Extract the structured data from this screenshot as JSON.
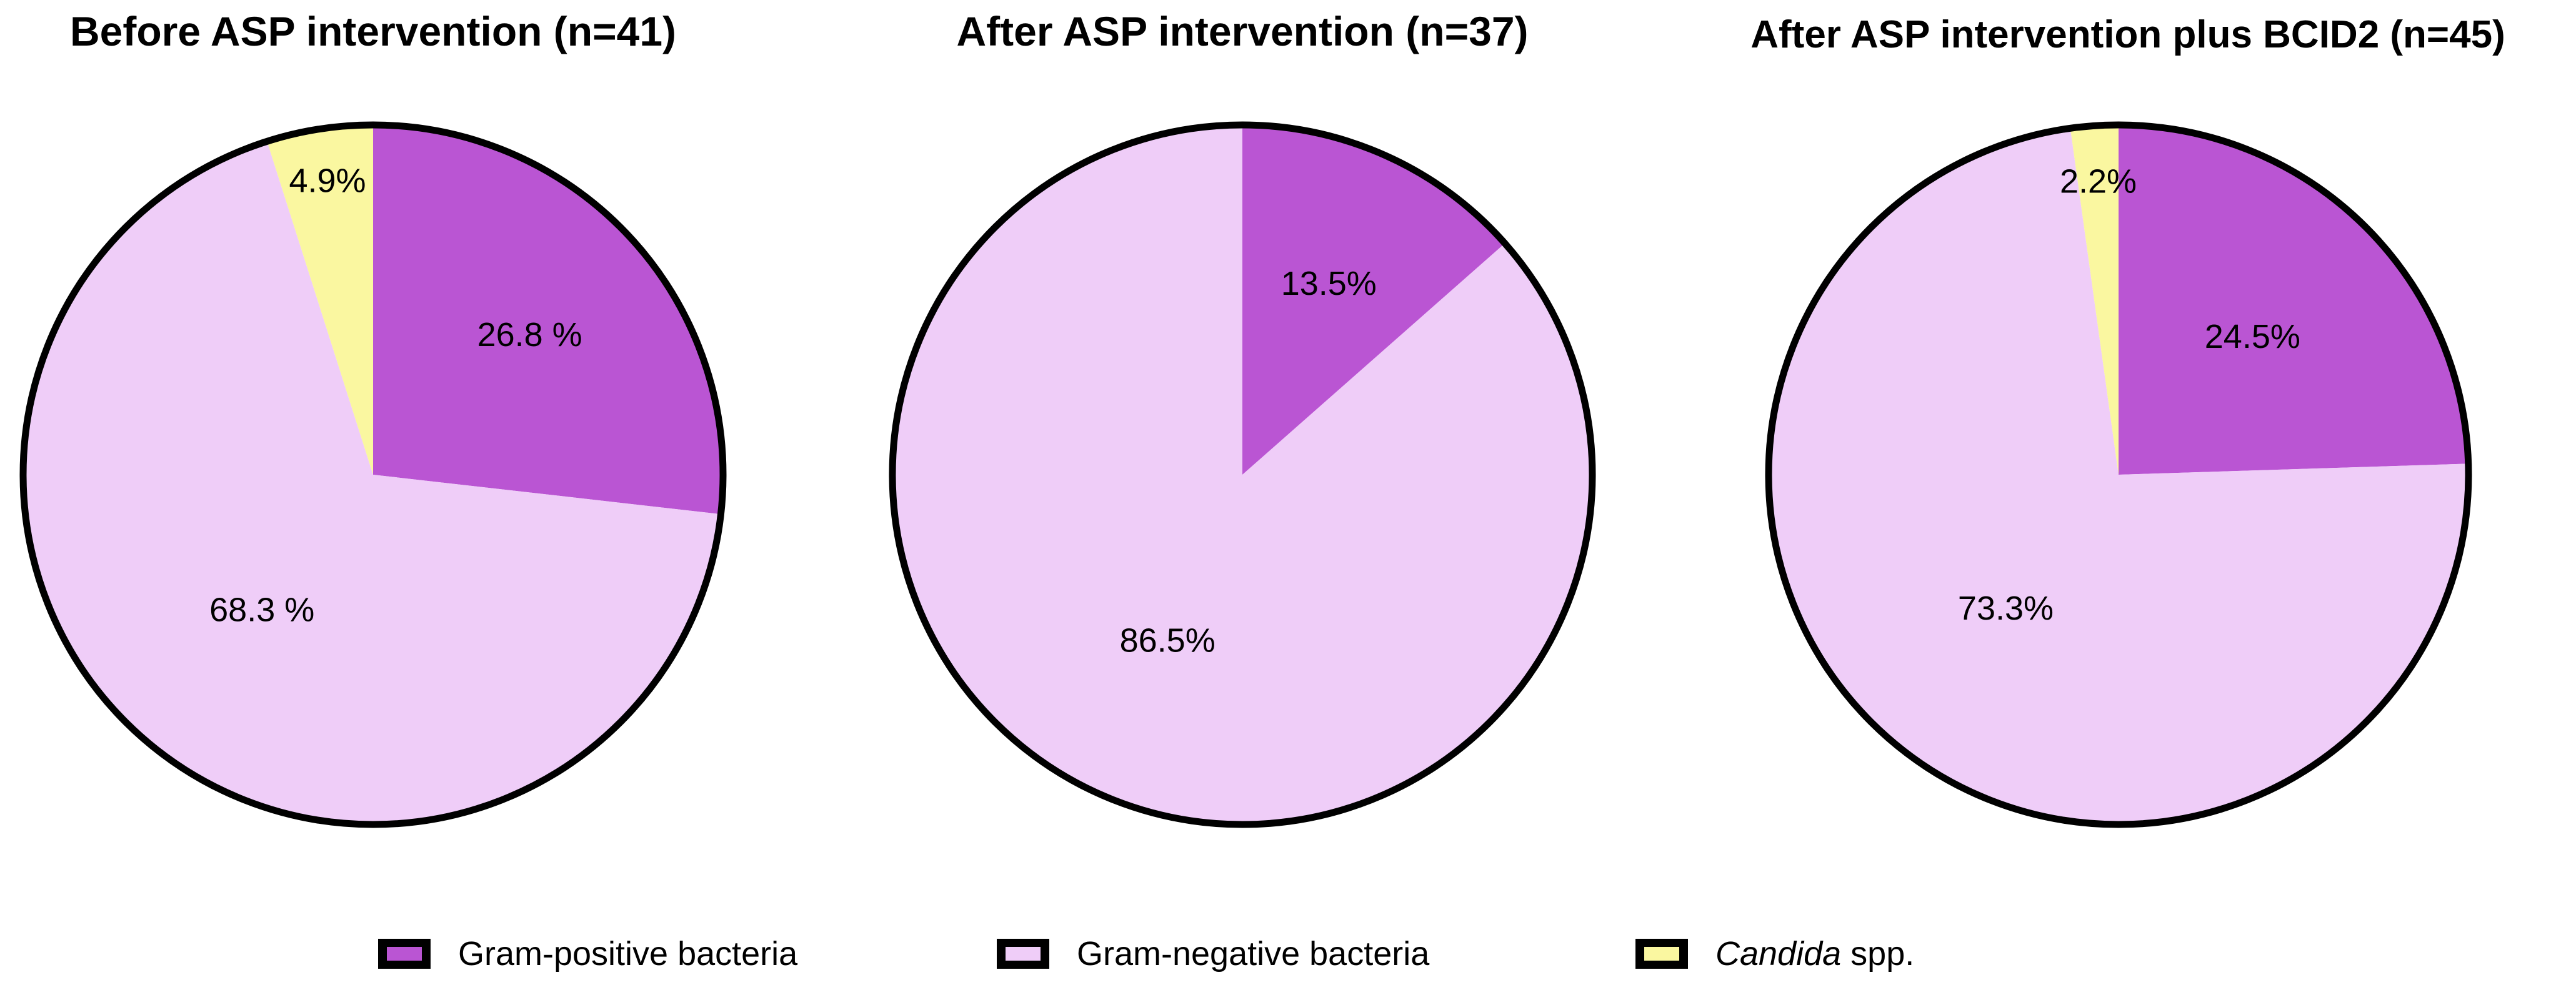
{
  "colors": {
    "gram_positive": "#BA55D3",
    "gram_negative": "#EFCDF8",
    "candida": "#FAF7A0",
    "outline": "#000000",
    "label_text": "#000000"
  },
  "chart_data": [
    {
      "type": "pie",
      "title": "Before ASP intervention (n=41)",
      "n": 41,
      "start_angle_deg": -90,
      "direction": "clockwise",
      "slices": [
        {
          "name": "Gram-positive bacteria",
          "value": 26.8,
          "label": "26.8 %",
          "color": "gram_positive",
          "label_r": 0.6
        },
        {
          "name": "Gram-negative bacteria",
          "value": 68.3,
          "label": "68.3 %",
          "color": "gram_negative",
          "label_r": 0.5
        },
        {
          "name": "Candida spp.",
          "value": 4.9,
          "label": "4.9%",
          "color": "candida",
          "label_r": 0.85
        }
      ]
    },
    {
      "type": "pie",
      "title": "After ASP intervention (n=37)",
      "n": 37,
      "start_angle_deg": -90,
      "direction": "clockwise",
      "slices": [
        {
          "name": "Gram-positive bacteria",
          "value": 13.5,
          "label": "13.5%",
          "color": "gram_positive",
          "label_r": 0.6
        },
        {
          "name": "Gram-negative bacteria",
          "value": 86.5,
          "label": "86.5%",
          "color": "gram_negative",
          "label_r": 0.52
        }
      ]
    },
    {
      "type": "pie",
      "title": "After ASP intervention plus BCID2 (n=45)",
      "n": 45,
      "start_angle_deg": -90,
      "direction": "clockwise",
      "slices": [
        {
          "name": "Gram-positive bacteria",
          "value": 24.5,
          "label": "24.5%",
          "color": "gram_positive",
          "label_r": 0.55
        },
        {
          "name": "Gram-negative bacteria",
          "value": 73.3,
          "label": "73.3%",
          "color": "gram_negative",
          "label_r": 0.5
        },
        {
          "name": "Candida spp.",
          "value": 2.2,
          "label": "2.2%",
          "color": "candida",
          "label_r": 0.84
        }
      ]
    }
  ],
  "legend": {
    "items": [
      {
        "label_italic": "",
        "label_rest": "Gram-positive bacteria",
        "color": "gram_positive"
      },
      {
        "label_italic": "",
        "label_rest": "Gram-negative bacteria",
        "color": "gram_negative"
      },
      {
        "label_italic": "Candida",
        "label_rest": " spp.",
        "color": "candida"
      }
    ]
  }
}
